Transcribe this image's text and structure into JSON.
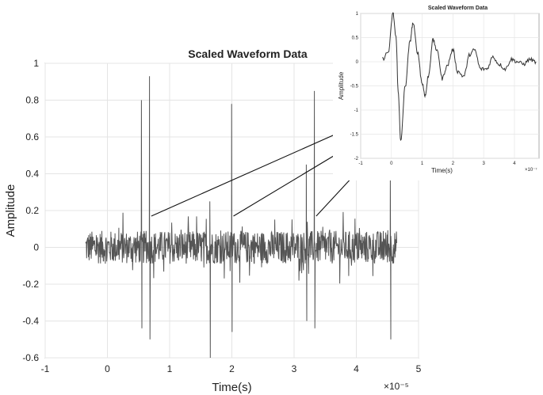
{
  "chart_data": [
    {
      "type": "line",
      "title": "Scaled Waveform Data",
      "xlabel": "Time(s)",
      "ylabel": "Amplitude",
      "x_exponent": "×10⁻⁵",
      "xlim": [
        -1,
        5
      ],
      "ylim": [
        -0.6,
        1
      ],
      "xticks": [
        "-1",
        "0",
        "1",
        "2",
        "3",
        "4",
        "5"
      ],
      "yticks": [
        "-0.6",
        "-0.4",
        "-0.2",
        "0",
        "0.2",
        "0.4",
        "0.6",
        "0.8",
        "1"
      ],
      "grid": true,
      "series_color": "#555555",
      "series": [
        {
          "x_range": [
            -0.35,
            4.65
          ],
          "noise_amplitude": 0.09,
          "spikes": [
            {
              "x": 0.55,
              "peak": 0.8,
              "trough": -0.44
            },
            {
              "x": 0.68,
              "peak": 0.93,
              "trough": -0.5
            },
            {
              "x": 1.65,
              "peak": 0.25,
              "trough": -0.6
            },
            {
              "x": 2.0,
              "peak": 0.78,
              "trough": -0.46
            },
            {
              "x": 3.2,
              "peak": 0.45,
              "trough": -0.4
            },
            {
              "x": 3.33,
              "peak": 0.85,
              "trough": -0.44
            },
            {
              "x": 4.55,
              "peak": 0.4,
              "trough": -0.5
            }
          ]
        }
      ]
    },
    {
      "type": "line",
      "title": "Scaled Waveform Data",
      "xlabel": "Time(s)",
      "ylabel": "Amplitude",
      "x_exponent": "×10⁻⁷",
      "xlim": [
        -1,
        4.8
      ],
      "ylim": [
        -2,
        1
      ],
      "xticks": [
        "-1",
        "0",
        "1",
        "2",
        "3",
        "4"
      ],
      "yticks": [
        "-2",
        "-1.5",
        "-1",
        "-0.5",
        "0",
        "0.5",
        "1"
      ],
      "grid": true,
      "series_color": "#333333",
      "series": [
        {
          "x_range": [
            -0.3,
            4.7
          ],
          "description_free": true,
          "points": [
            [
              -0.3,
              0.05
            ],
            [
              -0.1,
              0.2
            ],
            [
              0.05,
              1.0
            ],
            [
              0.15,
              0.5
            ],
            [
              0.22,
              -0.6
            ],
            [
              0.3,
              -1.65
            ],
            [
              0.45,
              -0.5
            ],
            [
              0.6,
              0.4
            ],
            [
              0.7,
              0.8
            ],
            [
              0.85,
              0.2
            ],
            [
              1.0,
              -0.45
            ],
            [
              1.1,
              -0.7
            ],
            [
              1.2,
              -0.3
            ],
            [
              1.35,
              0.45
            ],
            [
              1.5,
              0.2
            ],
            [
              1.65,
              -0.35
            ],
            [
              1.8,
              -0.1
            ],
            [
              2.0,
              0.25
            ],
            [
              2.15,
              -0.2
            ],
            [
              2.35,
              -0.3
            ],
            [
              2.55,
              0.15
            ],
            [
              2.7,
              0.25
            ],
            [
              2.9,
              -0.15
            ],
            [
              3.1,
              -0.15
            ],
            [
              3.3,
              0.1
            ],
            [
              3.5,
              -0.05
            ],
            [
              3.7,
              -0.15
            ],
            [
              3.9,
              0.05
            ],
            [
              4.1,
              0.0
            ],
            [
              4.3,
              -0.05
            ],
            [
              4.5,
              0.05
            ],
            [
              4.7,
              0.0
            ]
          ]
        }
      ]
    }
  ]
}
